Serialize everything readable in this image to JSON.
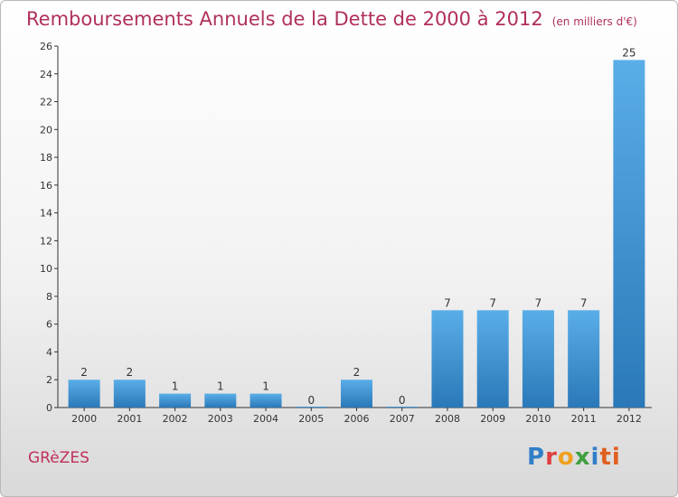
{
  "title": "Remboursements Annuels de la Dette de 2000 à 2012",
  "subtitle": "(en milliers d'€)",
  "commune": "GRèZES",
  "logo": [
    "P",
    "r",
    "o",
    "x",
    "i",
    "ti"
  ],
  "colors": {
    "bar_light": "#5aaee8",
    "bar_dark": "#2a78b8",
    "title": "#b0305a"
  },
  "chart_data": {
    "type": "bar",
    "title": "Remboursements Annuels de la Dette de 2000 à 2012",
    "subtitle": "(en milliers d'€)",
    "categories": [
      "2000",
      "2001",
      "2002",
      "2003",
      "2004",
      "2005",
      "2006",
      "2007",
      "2008",
      "2009",
      "2010",
      "2011",
      "2012"
    ],
    "values": [
      2,
      2,
      1,
      1,
      1,
      0,
      2,
      0,
      7,
      7,
      7,
      7,
      25
    ],
    "ylim": [
      0,
      26
    ],
    "yticks": [
      0,
      2,
      4,
      6,
      8,
      10,
      12,
      14,
      16,
      18,
      20,
      22,
      24,
      26
    ],
    "grid": false,
    "legend": "none"
  }
}
